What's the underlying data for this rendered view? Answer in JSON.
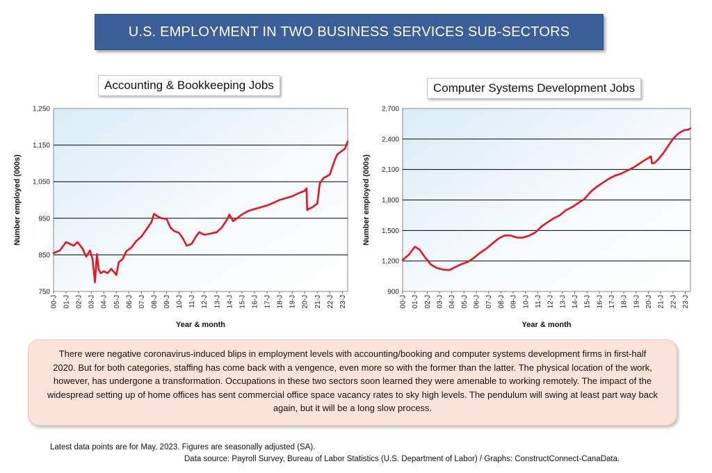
{
  "banner": {
    "title": "U.S. EMPLOYMENT IN TWO BUSINESS SERVICES SUB-SECTORS"
  },
  "note": {
    "text": "There were negative coronavirus-induced blips in employment levels with accounting/booking and computer systems development firms in first-half 2020. But for both categories, staffing has come back with a vengence, even more so with the former than the latter. The physical location of the work, however, has undergone a transformation. Occupations in these two sectors soon learned they were amenable to working remotely. The impact of the widespread setting up of home offices has sent commercial office space vacancy rates to sky high levels. The pendulum will swing at least part way back again, but it will be a long slow process."
  },
  "footer": {
    "line1": "Latest data points are for May, 2023. Figures are seasonally adjusted (SA).",
    "line2": "Data source: Payroll Survey, Bureau of Labor Statistics (U.S. Department of Labor) / Graphs: ConstructConnect-CanaData."
  },
  "colors": {
    "banner": "#3b5f99",
    "line": "#e8141b",
    "note_bg": "#fae4da"
  },
  "chart_data": [
    {
      "type": "line",
      "title": "Accounting & Bookkeeping Jobs",
      "xlabel": "Year & month",
      "ylabel": "Number employed (000s)",
      "ylim": [
        750,
        1250
      ],
      "yticks": [
        750,
        850,
        950,
        1050,
        1150,
        1250
      ],
      "ytick_labels": [
        "750",
        "850",
        "950",
        "1,050",
        "1,150",
        "1,250"
      ],
      "xlim": [
        2000.0,
        2023.42
      ],
      "xtick_labels": [
        "00-J",
        "01-J",
        "02-J",
        "03-J",
        "04-J",
        "05-J",
        "06-J",
        "07-J",
        "08-J",
        "09-J",
        "10-J",
        "11-J",
        "12-J",
        "13-J",
        "14-J",
        "15-J",
        "16-J",
        "17-J",
        "18-J",
        "19-J",
        "20-J",
        "21-J",
        "22-J",
        "23-J"
      ],
      "grid": true,
      "series": [
        {
          "x": [
            2000.0,
            2000.5,
            2001.0,
            2001.3,
            2001.6,
            2001.9,
            2002.3,
            2002.6,
            2002.9,
            2003.1,
            2003.3,
            2003.45,
            2003.6,
            2003.75,
            2004.0,
            2004.3,
            2004.6,
            2005.0,
            2005.2,
            2005.5,
            2005.8,
            2006.2,
            2006.6,
            2007.0,
            2007.4,
            2007.8,
            2008.0,
            2008.3,
            2008.6,
            2009.0,
            2009.3,
            2009.6,
            2010.0,
            2010.3,
            2010.6,
            2011.0,
            2011.3,
            2011.6,
            2012.0,
            2012.5,
            2013.0,
            2013.4,
            2013.8,
            2014.0,
            2014.3,
            2014.6,
            2015.0,
            2015.5,
            2016.0,
            2016.5,
            2017.0,
            2017.5,
            2018.0,
            2018.5,
            2019.0,
            2019.5,
            2020.0,
            2020.15,
            2020.2,
            2020.3,
            2020.6,
            2021.0,
            2021.2,
            2021.5,
            2021.8,
            2022.0,
            2022.2,
            2022.4,
            2022.6,
            2022.8,
            2023.0,
            2023.2,
            2023.42
          ],
          "y": [
            855,
            862,
            885,
            880,
            875,
            885,
            868,
            845,
            862,
            840,
            775,
            852,
            810,
            800,
            805,
            800,
            812,
            795,
            830,
            838,
            860,
            870,
            888,
            900,
            920,
            940,
            962,
            955,
            950,
            948,
            925,
            915,
            910,
            895,
            875,
            880,
            898,
            912,
            905,
            908,
            912,
            925,
            945,
            960,
            942,
            950,
            960,
            970,
            975,
            980,
            985,
            992,
            1000,
            1005,
            1010,
            1018,
            1025,
            1032,
            972,
            975,
            980,
            990,
            1045,
            1060,
            1065,
            1070,
            1090,
            1110,
            1125,
            1130,
            1135,
            1140,
            1160
          ]
        }
      ]
    },
    {
      "type": "line",
      "title": "Computer Systems Development Jobs",
      "xlabel": "Year & month",
      "ylabel": "Number employed (000s)",
      "ylim": [
        900,
        2700
      ],
      "yticks": [
        900,
        1200,
        1500,
        1800,
        2100,
        2400,
        2700
      ],
      "ytick_labels": [
        "900",
        "1,200",
        "1,500",
        "1,800",
        "2,100",
        "2,400",
        "2,700"
      ],
      "xlim": [
        2000.0,
        2023.42
      ],
      "xtick_labels": [
        "00-J",
        "01-J",
        "02-J",
        "03-J",
        "04-J",
        "05-J",
        "06-J",
        "07-J",
        "08-J",
        "09-J",
        "10-J",
        "11-J",
        "12-J",
        "13-J",
        "14-J",
        "15-J",
        "16-J",
        "17-J",
        "18-J",
        "19-J",
        "20-J",
        "21-J",
        "22-J",
        "23-J"
      ],
      "grid": true,
      "series": [
        {
          "x": [
            2000.0,
            2000.5,
            2001.0,
            2001.4,
            2001.8,
            2002.3,
            2002.8,
            2003.3,
            2003.8,
            2004.3,
            2004.8,
            2005.3,
            2005.8,
            2006.3,
            2006.8,
            2007.3,
            2007.8,
            2008.3,
            2008.8,
            2009.3,
            2009.8,
            2010.3,
            2010.8,
            2011.3,
            2011.8,
            2012.3,
            2012.8,
            2013.3,
            2013.8,
            2014.3,
            2014.8,
            2015.3,
            2015.8,
            2016.3,
            2016.8,
            2017.3,
            2017.8,
            2018.3,
            2018.8,
            2019.3,
            2019.8,
            2020.1,
            2020.2,
            2020.3,
            2020.5,
            2020.8,
            2021.2,
            2021.6,
            2022.0,
            2022.4,
            2022.8,
            2023.0,
            2023.2,
            2023.42
          ],
          "y": [
            1210,
            1260,
            1340,
            1310,
            1240,
            1165,
            1130,
            1115,
            1110,
            1140,
            1170,
            1190,
            1230,
            1280,
            1320,
            1370,
            1420,
            1450,
            1450,
            1430,
            1430,
            1450,
            1480,
            1540,
            1580,
            1620,
            1650,
            1700,
            1730,
            1770,
            1810,
            1880,
            1930,
            1970,
            2010,
            2040,
            2060,
            2090,
            2120,
            2160,
            2200,
            2220,
            2230,
            2160,
            2165,
            2200,
            2260,
            2330,
            2400,
            2450,
            2480,
            2490,
            2490,
            2505
          ]
        }
      ]
    }
  ]
}
